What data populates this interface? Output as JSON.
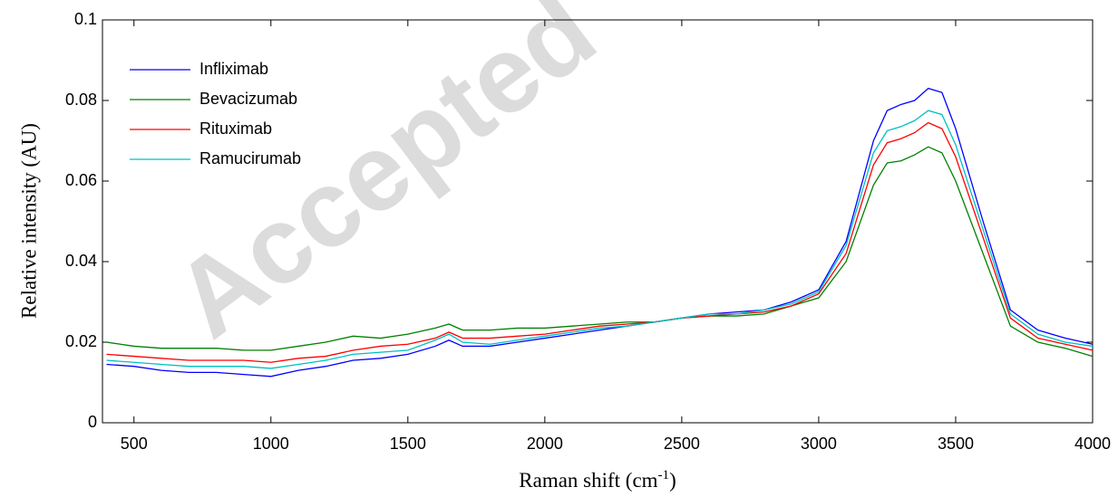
{
  "chart_data": {
    "type": "line",
    "watermark": "Accepted",
    "ylabel": "Relative intensity (AU)",
    "xlabel": [
      "Raman shift (cm",
      "-1",
      ")"
    ],
    "x": [
      400,
      500,
      600,
      700,
      800,
      900,
      1000,
      1100,
      1200,
      1300,
      1400,
      1500,
      1600,
      1650,
      1700,
      1800,
      1900,
      2000,
      2100,
      2200,
      2300,
      2400,
      2500,
      2600,
      2700,
      2800,
      2900,
      3000,
      3100,
      3200,
      3250,
      3300,
      3350,
      3400,
      3450,
      3500,
      3600,
      3700,
      3800,
      3900,
      4000
    ],
    "series": [
      {
        "name": "Infliximab",
        "color": "#0000ff",
        "values": [
          0.0145,
          0.014,
          0.013,
          0.0125,
          0.0125,
          0.012,
          0.0115,
          0.013,
          0.014,
          0.0155,
          0.016,
          0.017,
          0.019,
          0.0205,
          0.019,
          0.019,
          0.02,
          0.021,
          0.022,
          0.023,
          0.024,
          0.025,
          0.026,
          0.027,
          0.0275,
          0.028,
          0.03,
          0.033,
          0.045,
          0.07,
          0.0775,
          0.079,
          0.08,
          0.083,
          0.082,
          0.073,
          0.05,
          0.028,
          0.023,
          0.021,
          0.0195
        ]
      },
      {
        "name": "Bevacizumab",
        "color": "#008000",
        "values": [
          0.02,
          0.019,
          0.0185,
          0.0185,
          0.0185,
          0.018,
          0.018,
          0.019,
          0.02,
          0.0215,
          0.021,
          0.022,
          0.0235,
          0.0245,
          0.023,
          0.023,
          0.0235,
          0.0235,
          0.024,
          0.0245,
          0.025,
          0.025,
          0.026,
          0.0265,
          0.0265,
          0.027,
          0.029,
          0.031,
          0.04,
          0.059,
          0.0645,
          0.065,
          0.0665,
          0.0685,
          0.067,
          0.06,
          0.042,
          0.024,
          0.02,
          0.0185,
          0.0165
        ]
      },
      {
        "name": "Rituximab",
        "color": "#ff0000",
        "values": [
          0.017,
          0.0165,
          0.016,
          0.0155,
          0.0155,
          0.0155,
          0.015,
          0.016,
          0.0165,
          0.018,
          0.019,
          0.0195,
          0.021,
          0.0225,
          0.021,
          0.021,
          0.0215,
          0.022,
          0.023,
          0.024,
          0.0245,
          0.025,
          0.026,
          0.0265,
          0.027,
          0.0275,
          0.029,
          0.032,
          0.042,
          0.064,
          0.0695,
          0.0705,
          0.072,
          0.0745,
          0.073,
          0.066,
          0.046,
          0.026,
          0.021,
          0.0195,
          0.018
        ]
      },
      {
        "name": "Ramucirumab",
        "color": "#00bfbf",
        "values": [
          0.0155,
          0.015,
          0.0145,
          0.014,
          0.014,
          0.014,
          0.0135,
          0.0145,
          0.0155,
          0.017,
          0.0175,
          0.018,
          0.0205,
          0.022,
          0.02,
          0.0195,
          0.0205,
          0.0215,
          0.0225,
          0.0235,
          0.024,
          0.025,
          0.026,
          0.027,
          0.027,
          0.028,
          0.0295,
          0.0325,
          0.044,
          0.067,
          0.0725,
          0.0735,
          0.075,
          0.0775,
          0.0765,
          0.069,
          0.048,
          0.027,
          0.022,
          0.02,
          0.019
        ]
      }
    ],
    "xlim": [
      385,
      4000
    ],
    "ylim": [
      0,
      0.1
    ],
    "xticks": [
      500,
      1000,
      1500,
      2000,
      2500,
      3000,
      3500,
      4000
    ],
    "yticks": [
      0,
      0.02,
      0.04,
      0.06,
      0.08,
      0.1
    ],
    "grid": false,
    "legend": "upper-left"
  }
}
